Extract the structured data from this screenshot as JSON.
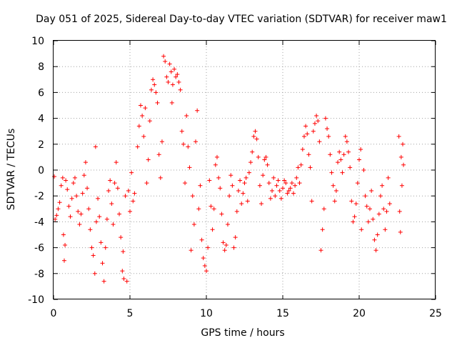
{
  "chart_data": {
    "type": "scatter",
    "title": "Day 051 of 2025, Sidereal Day-to-day VTEC variation (SDTVAR) for receiver maw1",
    "xlabel": "GPS time / hours",
    "ylabel": "SDTVAR / TECUs",
    "xlim": [
      0,
      25
    ],
    "ylim": [
      -10,
      10
    ],
    "x_ticks": [
      0,
      5,
      10,
      15,
      20,
      25
    ],
    "x_tick_labels": [
      "0",
      "5",
      "10",
      "15",
      "20",
      "25"
    ],
    "y_ticks": [
      -10,
      -8,
      -6,
      -4,
      -2,
      0,
      2,
      4,
      6,
      8,
      10
    ],
    "y_tick_labels": [
      "-10",
      "-8",
      "-6",
      "-4",
      "-2",
      "0",
      "2",
      "4",
      "6",
      "8",
      "10"
    ],
    "grid": true,
    "marker": "+",
    "series_color": "#ff0000",
    "series": [
      {
        "name": "maw1",
        "points": [
          [
            0.05,
            -0.5
          ],
          [
            0.1,
            -3.8
          ],
          [
            0.2,
            -3.5
          ],
          [
            0.3,
            -3.0
          ],
          [
            0.4,
            -2.5
          ],
          [
            0.5,
            -1.2
          ],
          [
            0.6,
            -0.6
          ],
          [
            0.65,
            -5.0
          ],
          [
            0.7,
            -7.0
          ],
          [
            0.75,
            -5.8
          ],
          [
            0.8,
            -0.8
          ],
          [
            0.9,
            -1.5
          ],
          [
            1.0,
            -2.8
          ],
          [
            1.1,
            -3.6
          ],
          [
            1.2,
            -2.2
          ],
          [
            1.3,
            -1.0
          ],
          [
            1.4,
            -0.6
          ],
          [
            1.5,
            -2.0
          ],
          [
            1.6,
            -3.2
          ],
          [
            1.7,
            -4.2
          ],
          [
            1.8,
            -3.4
          ],
          [
            1.9,
            -1.8
          ],
          [
            2.0,
            -0.4
          ],
          [
            2.1,
            0.6
          ],
          [
            2.2,
            -1.4
          ],
          [
            2.3,
            -3.0
          ],
          [
            2.4,
            -4.6
          ],
          [
            2.5,
            -6.0
          ],
          [
            2.6,
            -6.6
          ],
          [
            2.7,
            -8.0
          ],
          [
            2.75,
            1.8
          ],
          [
            2.8,
            -4.0
          ],
          [
            2.9,
            -2.2
          ],
          [
            3.0,
            -3.6
          ],
          [
            3.1,
            -5.6
          ],
          [
            3.2,
            -7.2
          ],
          [
            3.3,
            -8.6
          ],
          [
            3.4,
            -6.0
          ],
          [
            3.5,
            -3.8
          ],
          [
            3.6,
            -1.6
          ],
          [
            3.7,
            -0.8
          ],
          [
            3.8,
            -2.6
          ],
          [
            3.9,
            -4.2
          ],
          [
            4.0,
            -1.0
          ],
          [
            4.1,
            0.6
          ],
          [
            4.2,
            -1.4
          ],
          [
            4.3,
            -3.4
          ],
          [
            4.4,
            -5.2
          ],
          [
            4.5,
            -7.8
          ],
          [
            4.55,
            -6.3
          ],
          [
            4.6,
            -8.4
          ],
          [
            4.7,
            -2.0
          ],
          [
            4.8,
            -8.6
          ],
          [
            4.9,
            -1.6
          ],
          [
            5.0,
            -3.2
          ],
          [
            5.1,
            -0.2
          ],
          [
            5.2,
            -2.4
          ],
          [
            5.3,
            -1.8
          ],
          [
            5.5,
            1.8
          ],
          [
            5.6,
            3.4
          ],
          [
            5.7,
            5.0
          ],
          [
            5.8,
            4.2
          ],
          [
            5.9,
            2.6
          ],
          [
            6.0,
            4.8
          ],
          [
            6.1,
            -1.0
          ],
          [
            6.2,
            0.8
          ],
          [
            6.3,
            3.8
          ],
          [
            6.4,
            6.2
          ],
          [
            6.5,
            7.0
          ],
          [
            6.6,
            6.6
          ],
          [
            6.7,
            6.0
          ],
          [
            6.8,
            5.2
          ],
          [
            6.9,
            1.2
          ],
          [
            7.0,
            -0.6
          ],
          [
            7.1,
            2.2
          ],
          [
            7.2,
            8.8
          ],
          [
            7.3,
            8.4
          ],
          [
            7.4,
            7.2
          ],
          [
            7.5,
            6.8
          ],
          [
            7.6,
            8.2
          ],
          [
            7.7,
            7.6
          ],
          [
            7.75,
            5.2
          ],
          [
            7.8,
            6.6
          ],
          [
            7.9,
            7.8
          ],
          [
            8.0,
            7.2
          ],
          [
            8.1,
            7.4
          ],
          [
            8.2,
            6.8
          ],
          [
            8.3,
            6.2
          ],
          [
            8.4,
            3.0
          ],
          [
            8.5,
            2.0
          ],
          [
            8.6,
            -1.0
          ],
          [
            8.7,
            4.2
          ],
          [
            8.8,
            1.8
          ],
          [
            8.9,
            0.2
          ],
          [
            9.0,
            -6.2
          ],
          [
            9.1,
            -2.0
          ],
          [
            9.2,
            -4.2
          ],
          [
            9.3,
            2.2
          ],
          [
            9.4,
            4.6
          ],
          [
            9.5,
            -3.0
          ],
          [
            9.6,
            -1.2
          ],
          [
            9.7,
            -5.4
          ],
          [
            9.8,
            -6.8
          ],
          [
            9.9,
            -7.4
          ],
          [
            10.0,
            -7.8
          ],
          [
            10.1,
            -6.0
          ],
          [
            10.2,
            -0.8
          ],
          [
            10.3,
            -2.8
          ],
          [
            10.4,
            -4.6
          ],
          [
            10.5,
            -3.0
          ],
          [
            10.6,
            0.4
          ],
          [
            10.7,
            1.0
          ],
          [
            10.8,
            -0.6
          ],
          [
            10.9,
            -1.4
          ],
          [
            11.0,
            -3.4
          ],
          [
            11.1,
            -5.6
          ],
          [
            11.2,
            -6.2
          ],
          [
            11.3,
            -5.8
          ],
          [
            11.4,
            -4.2
          ],
          [
            11.5,
            -2.0
          ],
          [
            11.6,
            -0.4
          ],
          [
            11.7,
            -1.2
          ],
          [
            11.8,
            -6.0
          ],
          [
            11.9,
            -5.2
          ],
          [
            12.0,
            -3.2
          ],
          [
            12.1,
            -1.6
          ],
          [
            12.2,
            -0.8
          ],
          [
            12.3,
            -2.6
          ],
          [
            12.4,
            -1.8
          ],
          [
            12.5,
            -1.0
          ],
          [
            12.6,
            -0.6
          ],
          [
            12.7,
            -2.4
          ],
          [
            12.8,
            -0.2
          ],
          [
            12.9,
            0.6
          ],
          [
            13.0,
            1.4
          ],
          [
            13.1,
            2.6
          ],
          [
            13.2,
            3.0
          ],
          [
            13.3,
            2.4
          ],
          [
            13.4,
            1.0
          ],
          [
            13.5,
            -1.2
          ],
          [
            13.6,
            -2.6
          ],
          [
            13.7,
            -0.4
          ],
          [
            13.8,
            0.8
          ],
          [
            13.9,
            1.0
          ],
          [
            14.0,
            0.4
          ],
          [
            14.1,
            -1.0
          ],
          [
            14.2,
            -2.2
          ],
          [
            14.3,
            -1.6
          ],
          [
            14.4,
            -0.6
          ],
          [
            14.5,
            -2.0
          ],
          [
            14.6,
            -1.2
          ],
          [
            14.7,
            -0.8
          ],
          [
            14.8,
            -1.6
          ],
          [
            14.9,
            -2.2
          ],
          [
            15.0,
            -1.4
          ],
          [
            15.1,
            -0.8
          ],
          [
            15.2,
            -1.0
          ],
          [
            15.3,
            -1.8
          ],
          [
            15.4,
            -1.6
          ],
          [
            15.5,
            -1.4
          ],
          [
            15.6,
            -1.0
          ],
          [
            15.7,
            -1.8
          ],
          [
            15.8,
            -1.2
          ],
          [
            15.9,
            -0.6
          ],
          [
            16.0,
            0.2
          ],
          [
            16.1,
            -1.0
          ],
          [
            16.2,
            0.4
          ],
          [
            16.3,
            1.6
          ],
          [
            16.4,
            2.6
          ],
          [
            16.5,
            3.4
          ],
          [
            16.6,
            2.8
          ],
          [
            16.7,
            1.2
          ],
          [
            16.8,
            0.2
          ],
          [
            16.9,
            -2.4
          ],
          [
            17.0,
            3.0
          ],
          [
            17.1,
            3.6
          ],
          [
            17.2,
            4.2
          ],
          [
            17.3,
            3.8
          ],
          [
            17.4,
            2.2
          ],
          [
            17.5,
            -6.2
          ],
          [
            17.6,
            -4.6
          ],
          [
            17.7,
            -3.0
          ],
          [
            17.8,
            4.0
          ],
          [
            17.9,
            3.2
          ],
          [
            18.0,
            2.6
          ],
          [
            18.1,
            1.2
          ],
          [
            18.2,
            -0.2
          ],
          [
            18.3,
            -1.2
          ],
          [
            18.4,
            -2.4
          ],
          [
            18.5,
            -1.6
          ],
          [
            18.6,
            0.6
          ],
          [
            18.7,
            1.4
          ],
          [
            18.8,
            0.8
          ],
          [
            18.9,
            -0.2
          ],
          [
            19.0,
            1.2
          ],
          [
            19.1,
            2.6
          ],
          [
            19.2,
            2.2
          ],
          [
            19.3,
            1.4
          ],
          [
            19.4,
            0.2
          ],
          [
            19.5,
            -2.4
          ],
          [
            19.6,
            -4.0
          ],
          [
            19.7,
            -3.6
          ],
          [
            19.8,
            -2.6
          ],
          [
            19.9,
            -1.0
          ],
          [
            20.0,
            0.8
          ],
          [
            20.1,
            1.6
          ],
          [
            20.15,
            -4.6
          ],
          [
            20.3,
            0.0
          ],
          [
            20.4,
            -2.0
          ],
          [
            20.5,
            -2.8
          ],
          [
            20.6,
            -4.0
          ],
          [
            20.7,
            -3.0
          ],
          [
            20.8,
            -1.6
          ],
          [
            20.9,
            -3.8
          ],
          [
            21.0,
            -5.4
          ],
          [
            21.1,
            -6.2
          ],
          [
            21.2,
            -5.0
          ],
          [
            21.3,
            -3.4
          ],
          [
            21.4,
            -2.0
          ],
          [
            21.5,
            -1.2
          ],
          [
            21.6,
            -3.0
          ],
          [
            21.7,
            -4.6
          ],
          [
            21.8,
            -3.2
          ],
          [
            21.9,
            -0.6
          ],
          [
            22.0,
            -2.6
          ],
          [
            22.6,
            2.6
          ],
          [
            22.65,
            -3.2
          ],
          [
            22.7,
            -4.8
          ],
          [
            22.75,
            1.0
          ],
          [
            22.8,
            -1.2
          ],
          [
            22.85,
            2.0
          ],
          [
            22.9,
            0.4
          ]
        ]
      }
    ]
  }
}
